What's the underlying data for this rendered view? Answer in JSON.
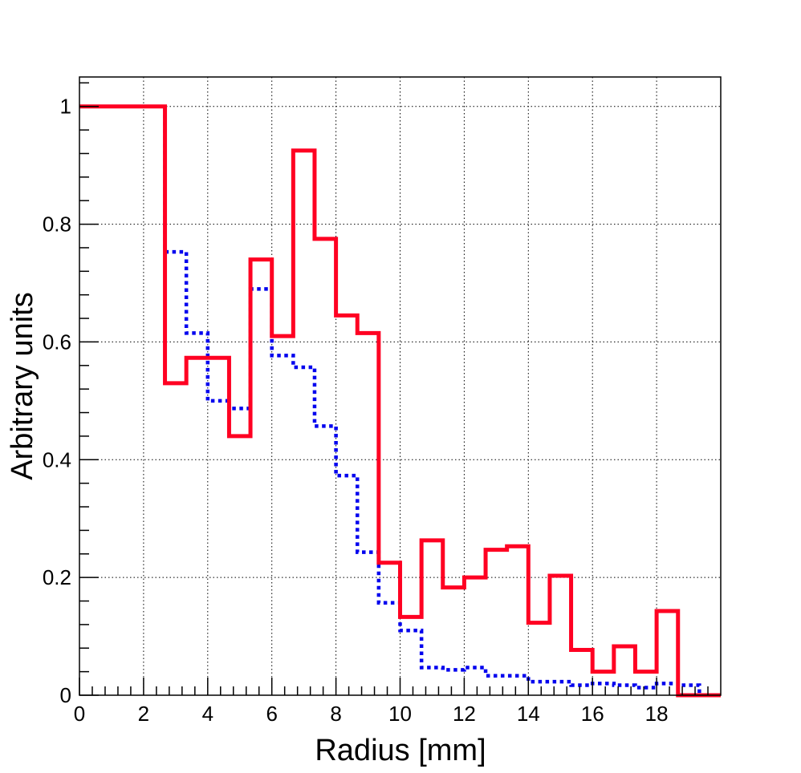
{
  "chart_data": {
    "type": "line",
    "title": "",
    "xlabel": "Radius [mm]",
    "ylabel": "Arbitrary units",
    "xlim": [
      0,
      20
    ],
    "ylim": [
      0,
      1.05
    ],
    "x_ticks": [
      0,
      2,
      4,
      6,
      8,
      10,
      12,
      14,
      16,
      18
    ],
    "x_tick_labels": [
      "0",
      "2",
      "4",
      "6",
      "8",
      "10",
      "12",
      "14",
      "16",
      "18"
    ],
    "y_ticks": [
      0,
      0.2,
      0.4,
      0.6,
      0.8,
      1
    ],
    "y_tick_labels": [
      "0",
      "0.2",
      "0.4",
      "0.6",
      "0.8",
      "1"
    ],
    "grid": true,
    "legend": "none",
    "bin_edges": [
      0,
      2.667,
      3.333,
      4.0,
      4.667,
      5.333,
      6.0,
      6.667,
      7.333,
      8.0,
      8.667,
      9.333,
      10.0,
      10.667,
      11.333,
      12.0,
      12.667,
      13.333,
      14.0,
      14.667,
      15.333,
      16.0,
      16.667,
      17.333,
      18.0,
      18.667,
      19.333,
      20.0
    ],
    "series": [
      {
        "color": "#ff0022",
        "style": "solid",
        "values": [
          1.0,
          0.53,
          0.573,
          0.573,
          0.44,
          0.74,
          0.61,
          0.925,
          0.775,
          0.645,
          0.615,
          0.225,
          0.133,
          0.263,
          0.183,
          0.2,
          0.247,
          0.253,
          0.123,
          0.203,
          0.077,
          0.04,
          0.083,
          0.04,
          0.143,
          0.0,
          0.0
        ]
      },
      {
        "color": "#0000ee",
        "style": "dotted",
        "values": [
          1.0,
          0.753,
          0.615,
          0.5,
          0.487,
          0.69,
          0.577,
          0.557,
          0.457,
          0.373,
          0.243,
          0.157,
          0.11,
          0.047,
          0.043,
          0.047,
          0.033,
          0.033,
          0.023,
          0.023,
          0.017,
          0.02,
          0.017,
          0.013,
          0.02,
          0.017,
          0.0
        ]
      }
    ]
  }
}
